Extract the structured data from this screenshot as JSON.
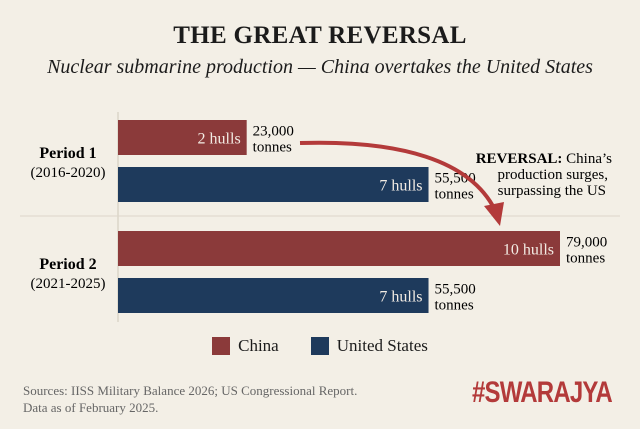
{
  "chart_data": {
    "type": "bar",
    "orientation": "horizontal",
    "title": "THE GREAT REVERSAL",
    "subtitle": "Nuclear submarine production — China overtakes the United States",
    "categories": [
      {
        "label": "Period 1",
        "sublabel": "(2016-2020)"
      },
      {
        "label": "Period 2",
        "sublabel": "(2021-2025)"
      }
    ],
    "series": [
      {
        "name": "China",
        "color": "#8b3a3a",
        "values": [
          23000,
          79000
        ],
        "hull_labels": [
          "2 hulls",
          "10 hulls"
        ],
        "value_labels": [
          "23,000",
          "79,000"
        ]
      },
      {
        "name": "United States",
        "color": "#1e3a5c",
        "values": [
          55500,
          55500
        ],
        "hull_labels": [
          "7 hulls",
          "7 hulls"
        ],
        "value_labels": [
          "55,500",
          "55,500"
        ]
      }
    ],
    "unit_label": "tonnes",
    "annotation": {
      "bold": "REVERSAL:",
      "text": [
        " China’s",
        "production surges,",
        "surpassing the US"
      ],
      "arrow_color": "#b33a3a"
    },
    "legend_position": "bottom",
    "grid": false
  },
  "footer": {
    "sources": "Sources: IISS Military Balance 2026; US Congressional Report.",
    "data_date": "Data as of February 2025.",
    "logo": "#SWARAJYA"
  }
}
